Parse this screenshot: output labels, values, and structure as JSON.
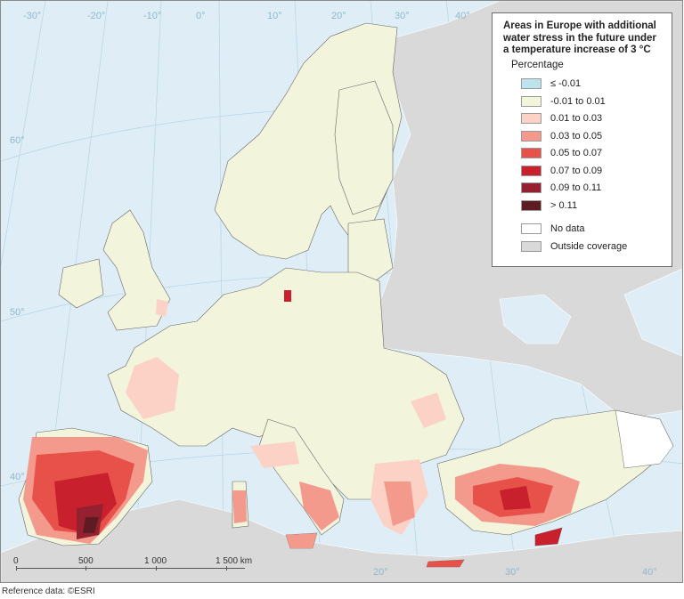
{
  "map": {
    "colors": {
      "sea": "#dfeef6",
      "land_outside": "#d9d9d9",
      "land_covered": "#f2f4dc",
      "graticule": "#b9d7e6",
      "border": "#666666"
    },
    "graticule_labels": {
      "lon": [
        "-30°",
        "-20°",
        "-10°",
        "0°",
        "10°",
        "20°",
        "30°",
        "40°",
        "20°",
        "30°",
        "40°"
      ],
      "lat": [
        "60°",
        "50°",
        "40°"
      ]
    }
  },
  "legend": {
    "title": "Areas in Europe with additional water stress in the future under a temperature increase of 3 °C",
    "subtitle": "Percentage",
    "items": [
      {
        "label": "≤ -0.01",
        "color": "#bfe3ec"
      },
      {
        "label": "-0.01 to 0.01",
        "color": "#f2f4dc"
      },
      {
        "label": "0.01 to 0.03",
        "color": "#fbd2c5"
      },
      {
        "label": "0.03 to 0.05",
        "color": "#f49a8c"
      },
      {
        "label": "0.05 to 0.07",
        "color": "#e8514a"
      },
      {
        "label": "0.07 to 0.09",
        "color": "#c8202c"
      },
      {
        "label": "0.09 to 0.11",
        "color": "#952030"
      },
      {
        "label": "> 0.11",
        "color": "#5e1b22"
      }
    ],
    "extra_items": [
      {
        "label": "No data",
        "color": "#ffffff"
      },
      {
        "label": "Outside coverage",
        "color": "#d9d9d9"
      }
    ]
  },
  "scale_bar": {
    "labels": [
      "0",
      "500",
      "1 000",
      "1 500 km"
    ]
  },
  "credit": "Reference data: ©ESRI"
}
